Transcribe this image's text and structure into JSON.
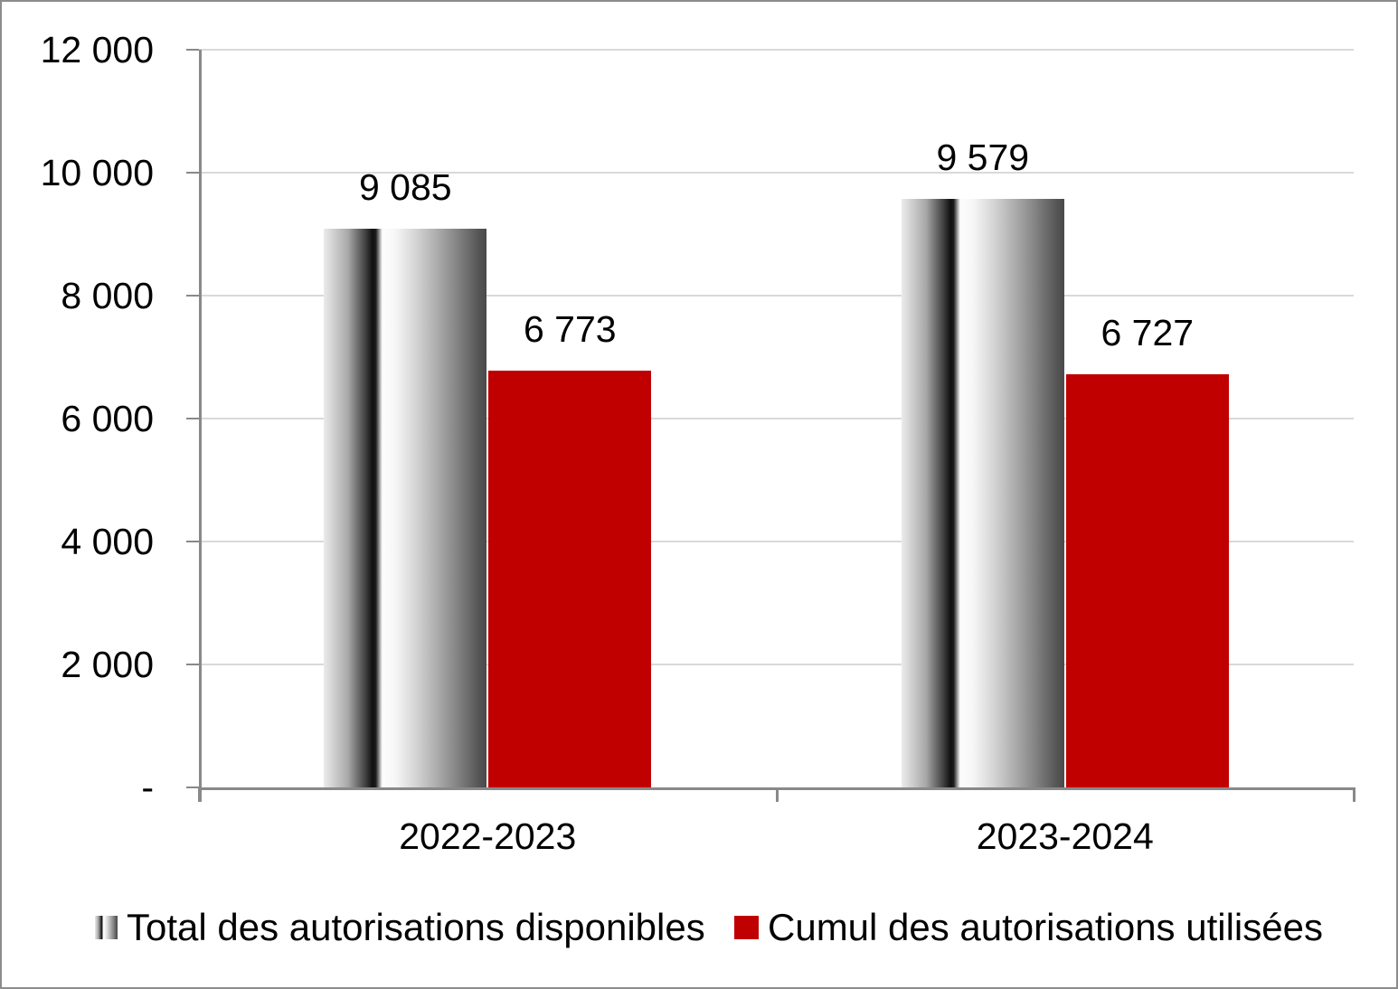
{
  "chart_data": {
    "type": "bar",
    "title": "",
    "xlabel": "",
    "ylabel": "",
    "categories": [
      "2022-2023",
      "2023-2024"
    ],
    "series": [
      {
        "name": "Total des autorisations disponibles",
        "values": [
          9085,
          9579
        ],
        "value_labels": [
          "9 085",
          "9 579"
        ],
        "style": "gradient-gray"
      },
      {
        "name": "Cumul des autorisations utilisées",
        "values": [
          6773,
          6727
        ],
        "value_labels": [
          "6 773",
          "6 727"
        ],
        "style": "solid-red",
        "color": "#c00000"
      }
    ],
    "ylim": [
      0,
      12000
    ],
    "yticks": [
      {
        "value": 12000,
        "label": "12 000"
      },
      {
        "value": 10000,
        "label": "10 000"
      },
      {
        "value": 8000,
        "label": "8 000"
      },
      {
        "value": 6000,
        "label": "6 000"
      },
      {
        "value": 4000,
        "label": "4 000"
      },
      {
        "value": 2000,
        "label": "2 000"
      },
      {
        "value": 0,
        "label": "-"
      }
    ],
    "grid": true,
    "legend_position": "bottom"
  },
  "colors": {
    "series_red": "#c00000",
    "gridline": "#d9d9d9",
    "axis": "#898989",
    "text": "#000000",
    "background": "#ffffff",
    "border": "#8c8c8c"
  }
}
